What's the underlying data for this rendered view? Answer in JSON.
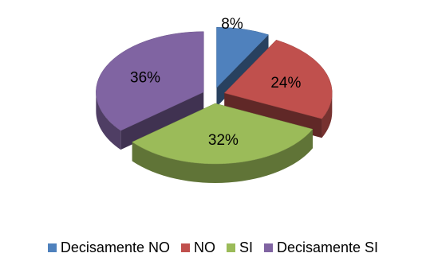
{
  "chart_data": {
    "type": "pie",
    "style": "3d-exploded",
    "categories": [
      "Decisamente NO",
      "NO",
      "SI",
      "Decisamente SI"
    ],
    "values": [
      8,
      24,
      32,
      36
    ],
    "labels": [
      "8%",
      "24%",
      "32%",
      "36%"
    ],
    "colors": [
      "#4F81BD",
      "#C0504D",
      "#9BBB59",
      "#8064A2"
    ],
    "legend_position": "bottom"
  }
}
